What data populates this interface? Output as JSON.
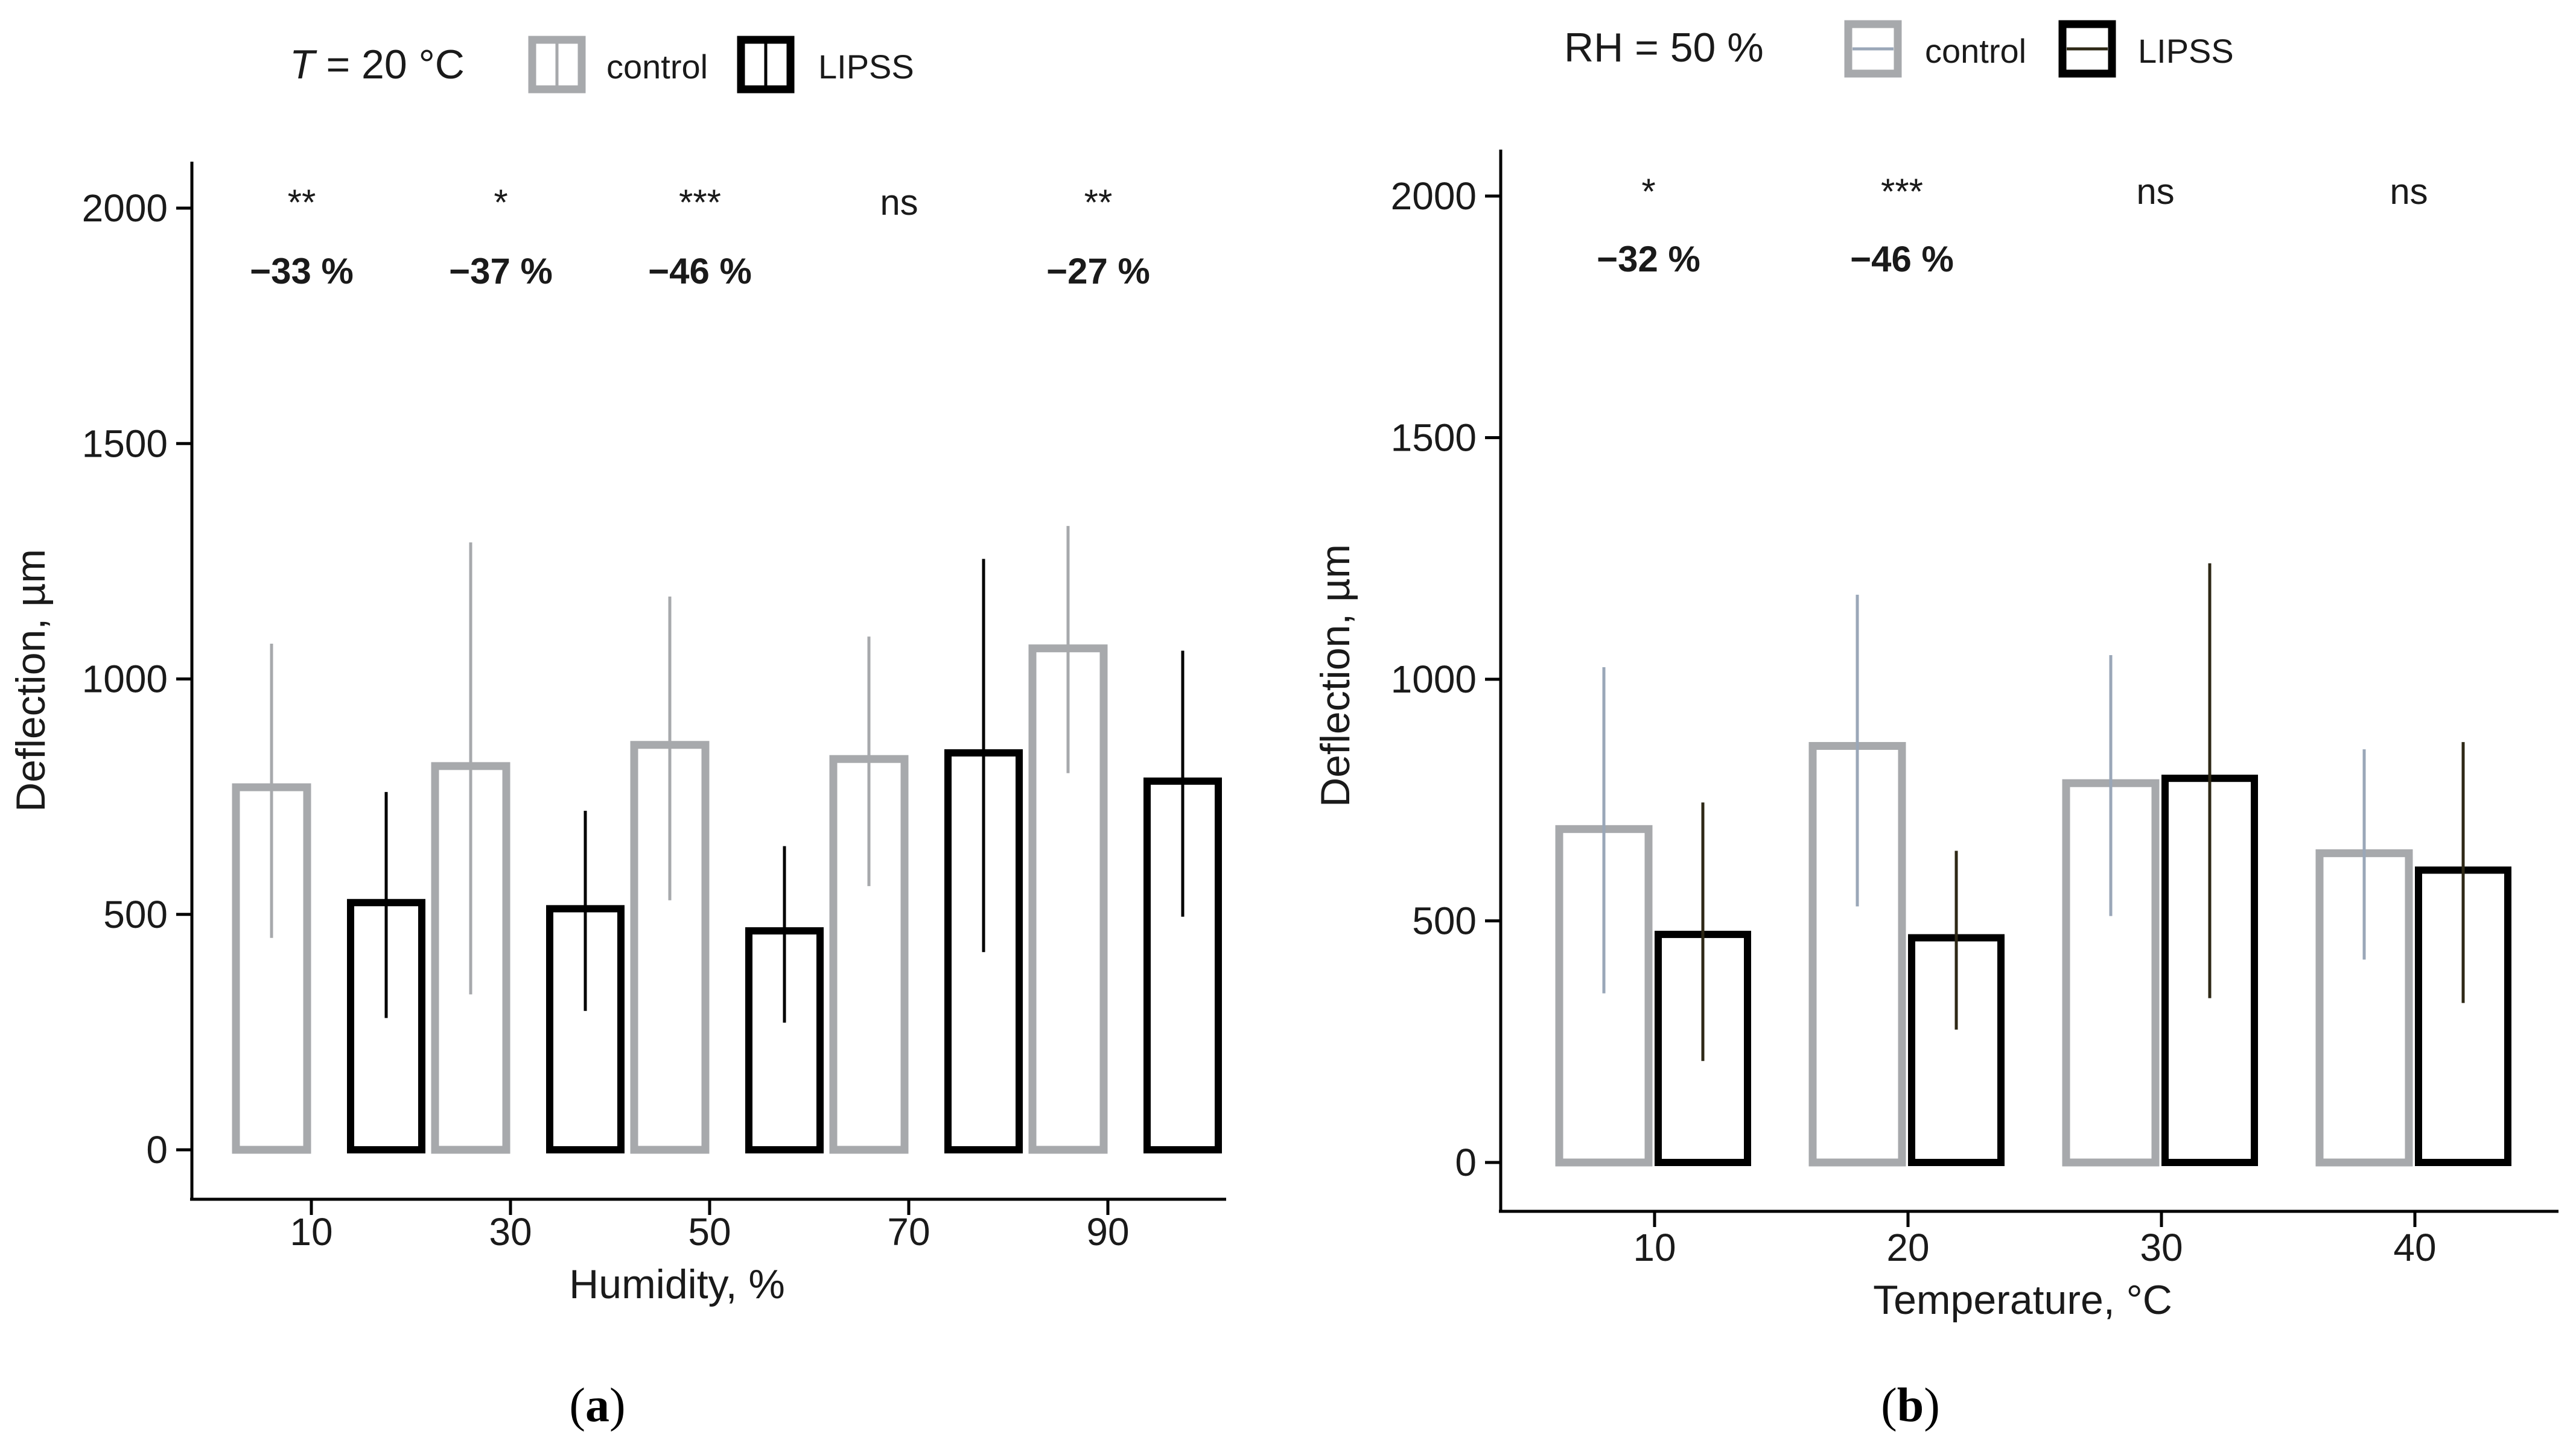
{
  "chart_data": [
    {
      "type": "bar",
      "panel_label": "a",
      "condition_var": "T",
      "condition_rest": " = 20 °C",
      "xlabel": "Humidity, %",
      "ylabel": "Deflection, µm",
      "ylim": [
        0,
        2100
      ],
      "yticks": [
        0,
        500,
        1000,
        1500,
        2000
      ],
      "categories": [
        "10",
        "30",
        "50",
        "70",
        "90"
      ],
      "legend": [
        "control",
        "LIPSS"
      ],
      "colors": {
        "control": "#a7a9ac",
        "LIPSS": "#000000",
        "control_err": "#a7a9ac",
        "LIPSS_err": "#000000"
      },
      "series": [
        {
          "name": "control",
          "values": [
            770,
            815,
            860,
            830,
            1065
          ],
          "error_low": [
            450,
            330,
            530,
            560,
            800
          ],
          "error_high": [
            1075,
            1290,
            1175,
            1090,
            1325
          ]
        },
        {
          "name": "LIPSS",
          "values": [
            525,
            512,
            465,
            843,
            783
          ],
          "error_low": [
            280,
            295,
            270,
            420,
            495
          ],
          "error_high": [
            760,
            720,
            645,
            1255,
            1060
          ]
        }
      ],
      "significance": [
        "**",
        "*",
        "***",
        "ns",
        "**"
      ],
      "percent_change": [
        "−33 %",
        "−37 %",
        "−46 %",
        "",
        "−27 %"
      ]
    },
    {
      "type": "bar",
      "panel_label": "b",
      "condition_var": "",
      "condition_rest": "RH = 50 %",
      "xlabel": "Temperature, °C",
      "ylabel": "Deflection, µm",
      "ylim": [
        0,
        2100
      ],
      "yticks": [
        0,
        500,
        1000,
        1500,
        2000
      ],
      "categories": [
        "10",
        "20",
        "30",
        "40"
      ],
      "legend": [
        "control",
        "LIPSS"
      ],
      "colors": {
        "control": "#a7a9ac",
        "LIPSS": "#000000",
        "control_err": "#9aa7b8",
        "LIPSS_err": "#2e2816"
      },
      "series": [
        {
          "name": "control",
          "values": [
            690,
            862,
            785,
            640
          ],
          "error_low": [
            350,
            530,
            510,
            420
          ],
          "error_high": [
            1025,
            1175,
            1050,
            855
          ]
        },
        {
          "name": "LIPSS",
          "values": [
            472,
            465,
            795,
            605
          ],
          "error_low": [
            210,
            275,
            340,
            330
          ],
          "error_high": [
            745,
            645,
            1240,
            870
          ]
        }
      ],
      "significance": [
        "*",
        "***",
        "ns",
        "ns"
      ],
      "percent_change": [
        "−32 %",
        "−46 %",
        "",
        ""
      ]
    }
  ]
}
